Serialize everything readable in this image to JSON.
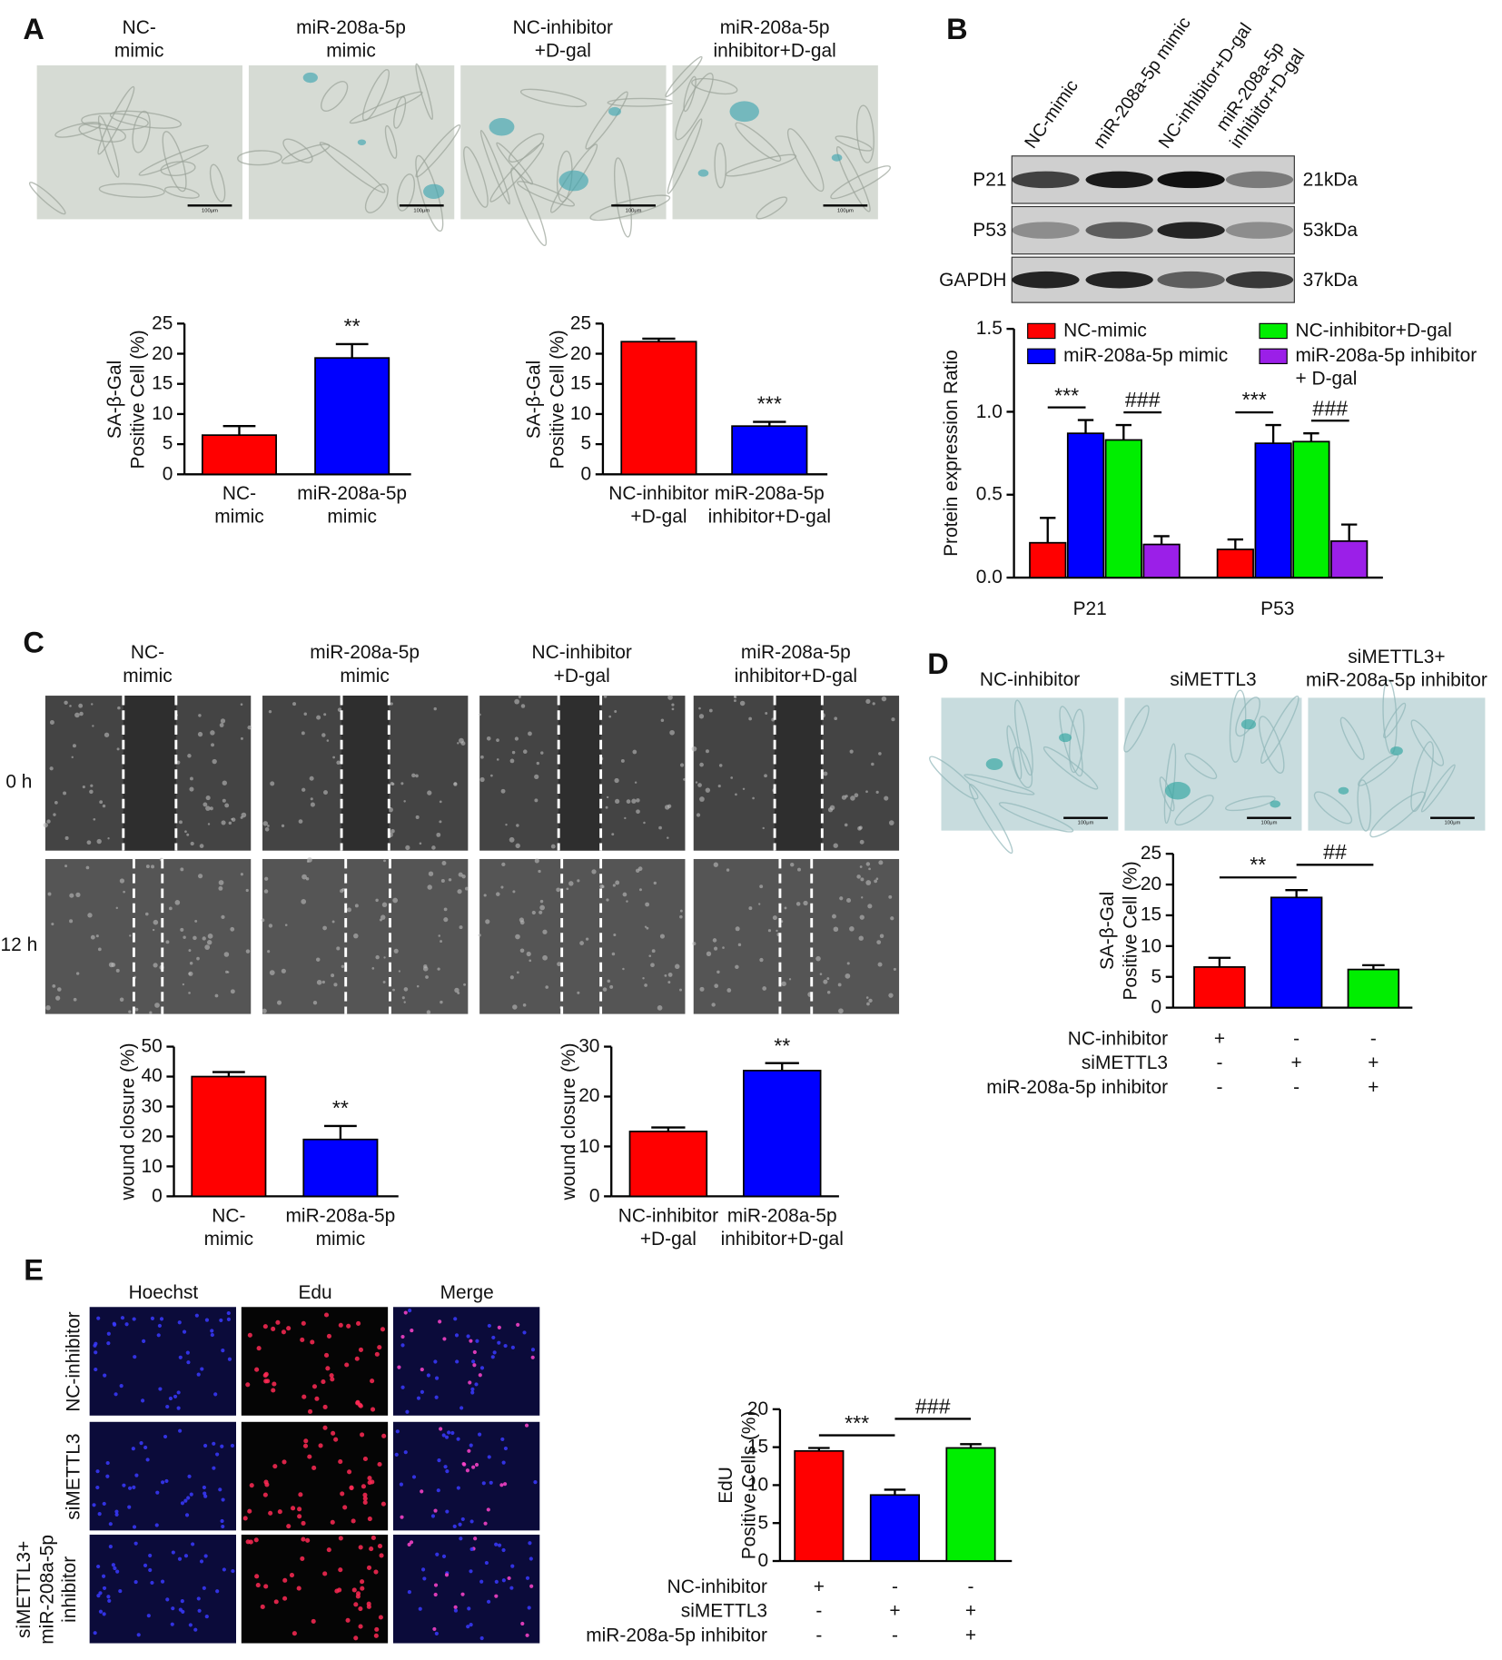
{
  "figure": {
    "panel_labels": [
      "A",
      "B",
      "C",
      "D",
      "E"
    ],
    "a_images": [
      "NC-\nmimic",
      "miR-208a-5p\nmimic",
      "NC-inhibitor\n+D-gal",
      "miR-208a-5p\ninhibitor+D-gal"
    ],
    "scale_bar": "100μm",
    "b_lanes": [
      "NC-mimic",
      "miR-208a-5p mimic",
      "NC-inhibitor+D-gal",
      "miR-208a-5p\ninhibitor+D-gal"
    ],
    "b_bands": [
      {
        "protein": "P21",
        "size": "21kDa"
      },
      {
        "protein": "P53",
        "size": "53kDa"
      },
      {
        "protein": "GAPDH",
        "size": "37kDa"
      }
    ],
    "c_images": [
      "NC-\nmimic",
      "miR-208a-5p\nmimic",
      "NC-inhibitor\n+D-gal",
      "miR-208a-5p\ninhibitor+D-gal"
    ],
    "c_rows": [
      "0 h",
      "12 h"
    ],
    "d_images": [
      "NC-inhibitor",
      "siMETTL3",
      "siMETTL3+\nmiR-208a-5p inhibitor"
    ],
    "e_columns": [
      "Hoechst",
      "Edu",
      "Merge"
    ],
    "e_rows": [
      "NC-inhibitor",
      "siMETTL3",
      "siMETTL3+\nmiR-208a-5p\ninhibitor"
    ]
  },
  "chart_data": [
    {
      "type": "bar",
      "ylabel": "SA-β-Gal\nPositive Cell (%)",
      "categories": [
        "NC-\nmimic",
        "miR-208a-5p\nmimic"
      ],
      "values": [
        6.5,
        19.3
      ],
      "errors": [
        1.5,
        2.3
      ],
      "colors": [
        "#ff0000",
        "#0000ff"
      ],
      "ylim": [
        0,
        25
      ],
      "yticks": [
        0,
        5,
        10,
        15,
        20,
        25
      ],
      "annotations": [
        {
          "text": "**",
          "categories": [
            1
          ]
        }
      ]
    },
    {
      "type": "bar",
      "ylabel": "SA-β-Gal\nPositive Cell (%)",
      "categories": [
        "NC-inhibitor\n+D-gal",
        "miR-208a-5p\ninhibitor+D-gal"
      ],
      "values": [
        22,
        8
      ],
      "errors": [
        0.5,
        0.7
      ],
      "colors": [
        "#ff0000",
        "#0000ff"
      ],
      "ylim": [
        0,
        25
      ],
      "yticks": [
        0,
        5,
        10,
        15,
        20,
        25
      ],
      "annotations": [
        {
          "text": "***",
          "categories": [
            1
          ]
        }
      ]
    },
    {
      "type": "bar",
      "ylabel": "Protein expression Ratio",
      "categories": [
        "P21",
        "P53"
      ],
      "series": [
        {
          "name": "NC-mimic",
          "color": "#ff0000",
          "values": [
            0.21,
            0.17
          ],
          "errors": [
            0.15,
            0.06
          ]
        },
        {
          "name": "miR-208a-5p mimic",
          "color": "#0000ff",
          "values": [
            0.87,
            0.81
          ],
          "errors": [
            0.08,
            0.11
          ]
        },
        {
          "name": "NC-inhibitor+D-gal",
          "color": "#00ee00",
          "values": [
            0.83,
            0.82
          ],
          "errors": [
            0.09,
            0.05
          ]
        },
        {
          "name": "miR-208a-5p inhibitor\n+ D-gal",
          "color": "#9b1fe8",
          "values": [
            0.2,
            0.22
          ],
          "errors": [
            0.05,
            0.1
          ]
        }
      ],
      "ylim": [
        0,
        1.5
      ],
      "yticks": [
        {
          "value": 0,
          "label": "0.0"
        },
        {
          "value": 0.5,
          "label": "0.5"
        },
        {
          "value": 1,
          "label": "1.0"
        },
        {
          "value": 1.5,
          "label": "1.5"
        }
      ],
      "legend": "top",
      "annotations": [
        {
          "text": "***",
          "category": 0,
          "series": [
            0,
            1
          ]
        },
        {
          "text": "###",
          "category": 0,
          "series": [
            2,
            3
          ]
        },
        {
          "text": "***",
          "category": 1,
          "series": [
            0,
            1
          ]
        },
        {
          "text": "###",
          "category": 1,
          "series": [
            2,
            3
          ]
        }
      ]
    },
    {
      "type": "bar",
      "ylabel": "wound closure (%)",
      "categories": [
        "NC-\nmimic",
        "miR-208a-5p\nmimic"
      ],
      "values": [
        40,
        19
      ],
      "errors": [
        1.5,
        4.5
      ],
      "colors": [
        "#ff0000",
        "#0000ff"
      ],
      "ylim": [
        0,
        50
      ],
      "yticks": [
        0,
        10,
        20,
        30,
        40,
        50
      ],
      "annotations": [
        {
          "text": "**",
          "categories": [
            1
          ]
        }
      ]
    },
    {
      "type": "bar",
      "ylabel": "wound closure (%)",
      "categories": [
        "NC-inhibitor\n+D-gal",
        "miR-208a-5p\ninhibitor+D-gal"
      ],
      "values": [
        13,
        25.2
      ],
      "errors": [
        0.8,
        1.5
      ],
      "colors": [
        "#ff0000",
        "#0000ff"
      ],
      "ylim": [
        0,
        30
      ],
      "yticks": [
        0,
        10,
        20,
        30
      ],
      "annotations": [
        {
          "text": "**",
          "categories": [
            1
          ]
        }
      ]
    },
    {
      "type": "bar",
      "ylabel": "SA-β-Gal\nPositive Cell (%)",
      "values": [
        6.6,
        17.9,
        6.2
      ],
      "errors": [
        1.5,
        1.2,
        0.7
      ],
      "colors": [
        "#ff0000",
        "#0000ff",
        "#00ee00"
      ],
      "ylim": [
        0,
        25
      ],
      "yticks": [
        0,
        5,
        10,
        15,
        20,
        25
      ],
      "conditions": [
        {
          "label": "NC-inhibitor",
          "marks": [
            "+",
            "-",
            "-"
          ]
        },
        {
          "label": "siMETTL3",
          "marks": [
            "-",
            "+",
            "+"
          ]
        },
        {
          "label": "miR-208a-5p inhibitor",
          "marks": [
            "-",
            "-",
            "+"
          ]
        }
      ],
      "annotations": [
        {
          "text": "**",
          "categories": [
            0,
            1
          ]
        },
        {
          "text": "##",
          "categories": [
            1,
            2
          ]
        }
      ]
    },
    {
      "type": "bar",
      "ylabel": "EdU\nPositive Cells (%)",
      "values": [
        14.5,
        8.7,
        14.9
      ],
      "errors": [
        0.4,
        0.7,
        0.5
      ],
      "colors": [
        "#ff0000",
        "#0000ff",
        "#00ee00"
      ],
      "ylim": [
        0,
        20
      ],
      "yticks": [
        0,
        5,
        10,
        15,
        20
      ],
      "conditions": [
        {
          "label": "NC-inhibitor",
          "marks": [
            "+",
            "-",
            "-"
          ]
        },
        {
          "label": "siMETTL3",
          "marks": [
            "-",
            "+",
            "+"
          ]
        },
        {
          "label": "miR-208a-5p inhibitor",
          "marks": [
            "-",
            "-",
            "+"
          ]
        }
      ],
      "annotations": [
        {
          "text": "***",
          "categories": [
            0,
            1
          ]
        },
        {
          "text": "###",
          "categories": [
            1,
            2
          ]
        }
      ]
    }
  ]
}
